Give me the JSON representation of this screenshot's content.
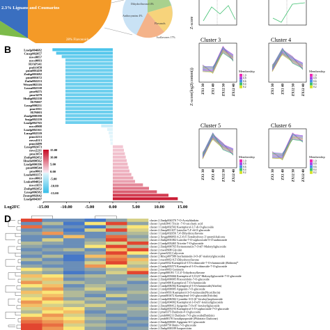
{
  "panel_letters": {
    "b": "B",
    "d": "D"
  },
  "pie_labels": {
    "lignans": "2.3% Lignans and Coumarins",
    "flavonoids": "28% Flavonoids",
    "dihydroflavonol": "Dihydroflavonol 4%",
    "anthocyanins": "Anthocyanins 4%",
    "flavanols": "Flavanols",
    "isoflavones": "Isoflavones 17%"
  },
  "clusters": {
    "c3": "Cluster 3",
    "c4": "Cluster 4",
    "c5": "Cluster 5",
    "c6": "Cluster 6",
    "ylabel": "Z-score(log2(content))",
    "membership": "Membership",
    "membership_levels": [
      "1.0",
      "0.8",
      "0.6",
      "0.4",
      "0.2"
    ],
    "xticks": [
      "ZX1 30",
      "ZX1 40",
      "ZX12 30",
      "ZX12 40"
    ]
  },
  "chart_data": {
    "type": "bar",
    "title": "",
    "xlabel": "Log2FC",
    "xlim": [
      -15,
      15
    ],
    "xticks": [
      "-15.00",
      "-10.00",
      "-5.00",
      "0.00",
      "5.00",
      "10.00",
      "15.00"
    ],
    "colorbar": [
      "15.00",
      "10.00",
      "5.00",
      "0.00",
      "-5.00",
      "-10.00",
      "-15.00"
    ],
    "categories": [
      "Lmdp004682",
      "Cmzp002057",
      "mws0057",
      "mws0093",
      "HJAP141",
      "pmb1458",
      "pmn001459",
      "Zmhp001682",
      "pmn001672",
      "Zmln002253",
      "Wmzn002116",
      "Lmsn002338",
      "pme0475",
      "pme3479",
      "Hmhp002158",
      "HJN007",
      "Lmsp000251",
      "pme1011",
      "HJN003",
      "Zmdp000190",
      "Smjp002159",
      "Lmdp002765",
      "mws0908",
      "Lmdp002161",
      "Lmzp002339",
      "pmn3233",
      "mws4113",
      "pmn3499",
      "Lmsp002473",
      "mws2211",
      "pme3474",
      "Zmhp002452",
      "Hmdn000562",
      "Lmdp000196",
      "pmn000544",
      "pme0063",
      "Lmdn003373",
      "mws0063",
      "Lmkn004024",
      "mws1655",
      "Zmhp002452",
      "Lmsp006582",
      "Zmmp002642",
      "Lmdp004307"
    ],
    "values": [
      -13.0,
      -12.2,
      -11.0,
      -10.2,
      -10.2,
      -10.2,
      -10.2,
      -10.2,
      -10.2,
      -10.2,
      -10.2,
      -10.2,
      -10.2,
      -10.2,
      -10.2,
      -10.2,
      -10.2,
      -10.2,
      -10.2,
      -10.2,
      -10.2,
      -10.2,
      -2.5,
      -1.2,
      -0.9,
      -0.7,
      -0.6,
      -0.5,
      2.2,
      2.4,
      2.6,
      2.8,
      3.0,
      3.2,
      3.4,
      3.6,
      4.0,
      4.4,
      4.8,
      6.5,
      7.8,
      9.5,
      12.0,
      14.0
    ]
  },
  "heatmap_data": {
    "type": "heatmap",
    "rows": [
      {
        "cluster": "cluster 2",
        "id": "Zmdp004370",
        "name": "7-O-Acetyldaidzin"
      },
      {
        "cluster": "cluster 1",
        "id": "pmb3041",
        "name": "Tricin -7-O-saccharic acid"
      },
      {
        "cluster": "cluster 1",
        "id": "Lmdp002502",
        "name": "Kaempferol-3,7-di-O-glucoside"
      },
      {
        "cluster": "cluster 2",
        "id": "Zmzp001107",
        "name": "Luteolin-7,4'-di-O-glucoside"
      },
      {
        "cluster": "cluster 1",
        "id": "Lmdp002656",
        "name": "7,4'-Dihydroxyflavone"
      },
      {
        "cluster": "cluster 2",
        "id": "Xmgp006093",
        "name": "4,2',4',6'-Tetrahydroxy-3'-prenylchalcone"
      },
      {
        "cluster": "cluster 2",
        "id": "Zmhp001082",
        "name": "Luteolin-7-O-sophoroside-5-O-arabinoside"
      },
      {
        "cluster": "cluster 2",
        "id": "Lmdp003465",
        "name": "Tricetin-7-O-glucoside"
      },
      {
        "cluster": "cluster 2",
        "id": "Zmdp000765",
        "name": "Formononetin-7-O-(6''-Malonyl)glucoside"
      },
      {
        "cluster": "cluster 2",
        "id": "mws0908",
        "name": "Glycitin"
      },
      {
        "cluster": "cluster 2",
        "id": "pmn3233",
        "name": "Calycosin"
      },
      {
        "cluster": "cluster 2",
        "id": "Hmcp007589",
        "name": "Isorhamnetin-3-O-(6''-malonylglucoside)"
      },
      {
        "cluster": "cluster 1",
        "id": "mws0063",
        "name": "8,5'-Dihydroxyflavone"
      },
      {
        "cluster": "cluster 2",
        "id": "pme0032",
        "name": "Kaempferol-3-O-robinoside-7-O-rhamnoside (Robinin)*"
      },
      {
        "cluster": "cluster 2",
        "id": "Lmdp003573",
        "name": "Kaempferol-3-O-robinoside-7-O-glucoside"
      },
      {
        "cluster": "cluster 2",
        "id": "mws0063",
        "name": "Genistein"
      },
      {
        "cluster": "cluster 2",
        "id": "pmp000191",
        "name": "7,3',4'-Trihydroxyflavone"
      },
      {
        "cluster": "cluster 2",
        "id": "Lmdp003666",
        "name": "Kaempferol-3-O-(6''-Malonyl)glucoside-7-O-glucoside"
      },
      {
        "cluster": "cluster 2",
        "id": "Zmdp000005",
        "name": "Pinocembrin-7-O-glucoside"
      },
      {
        "cluster": "cluster 1",
        "id": "pme0400",
        "name": "Kaempferol-7-O-rhamnoside"
      },
      {
        "cluster": "cluster 2",
        "id": "Lmdp006582",
        "name": "Kaempferol-3-O-rhamnoside(Afzelin)"
      },
      {
        "cluster": "cluster 2",
        "id": "Lmdp000005",
        "name": "Apigenin-7-O-glucoside"
      },
      {
        "cluster": "cluster 2",
        "id": "mws0093",
        "name": "Kaempferol-3-O-rutinoside(Nicotiflorin)"
      },
      {
        "cluster": "cluster 2",
        "id": "pmn001672",
        "name": "Kaempferol-3-O-glucoside(Trifolin)"
      },
      {
        "cluster": "cluster 2",
        "id": "Lmdp006582",
        "name": "Cyanidin-3-O-(6''-feruloyl)sophoroside"
      },
      {
        "cluster": "cluster 2",
        "id": "Lmdp004002",
        "name": "Kaempferol-3-O-(6''-feruloyl)glucoside"
      },
      {
        "cluster": "cluster 2",
        "id": "Zmzp000412",
        "name": "Apigenin-7-O-(6''-feruloyl)glucoside"
      },
      {
        "cluster": "cluster 2",
        "id": "Zmhp003193",
        "name": "Kaempferol-3-O-sophoroside-7-O-glucoside"
      },
      {
        "cluster": "cluster 2",
        "id": "pme0375",
        "name": "Daidzein-4'-O-glucoside"
      },
      {
        "cluster": "cluster 2",
        "id": "pmb000211",
        "name": "Daidzein-7-O-glucoside(Daidzin)"
      },
      {
        "cluster": "cluster 2",
        "id": "pmb00170",
        "name": "Isosalipurposide (Phlorizin Chalcone)"
      },
      {
        "cluster": "cluster 2",
        "id": "Zmdp000001",
        "name": "Apigenin-6-C-glucoside"
      },
      {
        "cluster": "cluster 2",
        "id": "pmb0750",
        "name": "Butin-7-O-glucoside"
      },
      {
        "cluster": "cluster 2",
        "id": "Zmhp000189",
        "name": "Isoquercitrin"
      }
    ],
    "values": [
      [
        0.9,
        0.1,
        0.1,
        0.0,
        0.2,
        0.4
      ],
      [
        0.1,
        0.3,
        0.0,
        0.5,
        0.9,
        0.2
      ],
      [
        0.8,
        0.1,
        0.1,
        0.0,
        0.3,
        0.5
      ],
      [
        0.1,
        0.2,
        0.0,
        0.4,
        0.9,
        0.4
      ],
      [
        0.2,
        0.7,
        0.1,
        0.1,
        0.2,
        0.3
      ],
      [
        0.1,
        0.1,
        0.6,
        0.1,
        0.8,
        0.2
      ],
      [
        0.1,
        0.4,
        0.1,
        0.2,
        0.9,
        0.3
      ],
      [
        0.3,
        0.2,
        0.1,
        0.3,
        0.4,
        0.9
      ],
      [
        0.2,
        0.1,
        0.1,
        0.5,
        0.9,
        0.3
      ],
      [
        0.1,
        0.2,
        0.3,
        0.1,
        0.6,
        0.9
      ],
      [
        0.2,
        0.1,
        0.1,
        0.2,
        0.9,
        0.5
      ],
      [
        0.1,
        0.3,
        0.0,
        0.6,
        0.7,
        0.2
      ],
      [
        0.3,
        0.1,
        0.0,
        0.2,
        0.8,
        0.6
      ],
      [
        0.1,
        0.2,
        0.1,
        0.4,
        0.9,
        0.4
      ],
      [
        0.2,
        0.1,
        0.1,
        0.7,
        0.5,
        0.3
      ],
      [
        0.5,
        0.3,
        0.1,
        0.2,
        0.3,
        0.6
      ],
      [
        0.3,
        0.2,
        0.0,
        0.1,
        0.4,
        0.9
      ],
      [
        0.6,
        0.5,
        0.2,
        0.3,
        0.2,
        0.2
      ],
      [
        0.4,
        0.6,
        0.1,
        0.2,
        0.2,
        0.3
      ],
      [
        0.7,
        0.4,
        0.3,
        0.2,
        0.3,
        0.1
      ],
      [
        0.5,
        0.6,
        0.1,
        0.3,
        0.2,
        0.2
      ],
      [
        0.3,
        0.7,
        0.2,
        0.4,
        0.1,
        0.2
      ],
      [
        0.6,
        0.5,
        0.3,
        0.2,
        0.2,
        0.3
      ],
      [
        0.4,
        0.6,
        0.3,
        0.1,
        0.4,
        0.2
      ],
      [
        0.5,
        0.7,
        0.2,
        0.3,
        0.1,
        0.2
      ],
      [
        0.7,
        0.5,
        0.4,
        0.2,
        0.3,
        0.1
      ],
      [
        0.6,
        0.4,
        0.3,
        0.4,
        0.2,
        0.2
      ],
      [
        0.4,
        0.6,
        0.5,
        0.2,
        0.2,
        0.3
      ],
      [
        0.3,
        0.5,
        0.6,
        0.1,
        0.3,
        0.2
      ],
      [
        0.5,
        0.7,
        0.4,
        0.2,
        0.1,
        0.2
      ],
      [
        0.7,
        0.6,
        0.5,
        0.3,
        0.2,
        0.1
      ],
      [
        0.8,
        0.7,
        0.6,
        0.2,
        0.1,
        0.2
      ],
      [
        0.9,
        0.8,
        0.4,
        0.3,
        0.2,
        0.1
      ],
      [
        0.9,
        0.7,
        0.5,
        0.2,
        0.1,
        0.2
      ]
    ]
  }
}
